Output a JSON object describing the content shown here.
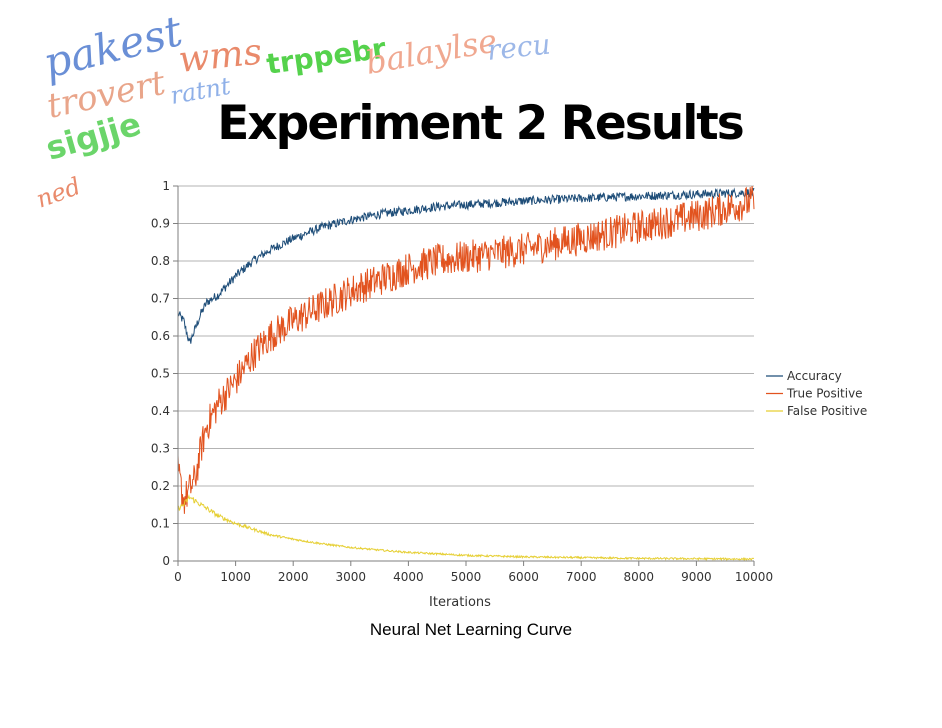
{
  "slide": {
    "title": "Experiment 2 Results",
    "caption": "Neural Net Learning Curve"
  },
  "captcha_words": [
    {
      "text": "pakest",
      "color": "#6a8fd6"
    },
    {
      "text": "wms",
      "color": "#e98a6b"
    },
    {
      "text": "trppebr",
      "color": "#55d24c"
    },
    {
      "text": "balaylse",
      "color": "#f0a890"
    },
    {
      "text": "recu",
      "color": "#9db8e8"
    },
    {
      "text": "trovert",
      "color": "#e9a58a"
    },
    {
      "text": "ratnt",
      "color": "#8fb0e8"
    },
    {
      "text": "sigjje",
      "color": "#6bd56a"
    },
    {
      "text": "ned",
      "color": "#e98a6b"
    }
  ],
  "chart_data": {
    "type": "line",
    "title": "",
    "xlabel": "Iterations",
    "ylabel": "",
    "xlim": [
      0,
      10000
    ],
    "ylim": [
      0,
      1
    ],
    "xticks": [
      "0",
      "1000",
      "2000",
      "3000",
      "4000",
      "5000",
      "6000",
      "7000",
      "8000",
      "9000",
      "10000"
    ],
    "yticks": [
      "0",
      "0.1",
      "0.2",
      "0.3",
      "0.4",
      "0.5",
      "0.6",
      "0.7",
      "0.8",
      "0.9",
      "1"
    ],
    "grid": "horizontal",
    "legend_position": "right",
    "series": [
      {
        "name": "Accuracy",
        "color": "#1f4e79",
        "points": [
          [
            0,
            0.66
          ],
          [
            100,
            0.64
          ],
          [
            200,
            0.58
          ],
          [
            300,
            0.62
          ],
          [
            400,
            0.66
          ],
          [
            500,
            0.69
          ],
          [
            700,
            0.71
          ],
          [
            1000,
            0.76
          ],
          [
            1300,
            0.8
          ],
          [
            1600,
            0.83
          ],
          [
            2000,
            0.86
          ],
          [
            2500,
            0.89
          ],
          [
            3000,
            0.91
          ],
          [
            3500,
            0.925
          ],
          [
            4000,
            0.935
          ],
          [
            4500,
            0.945
          ],
          [
            5000,
            0.95
          ],
          [
            5500,
            0.955
          ],
          [
            6000,
            0.96
          ],
          [
            7000,
            0.967
          ],
          [
            8000,
            0.973
          ],
          [
            9000,
            0.978
          ],
          [
            10000,
            0.983
          ]
        ]
      },
      {
        "name": "True Positive",
        "color": "#e2531f",
        "points": [
          [
            0,
            0.24
          ],
          [
            100,
            0.16
          ],
          [
            200,
            0.19
          ],
          [
            300,
            0.22
          ],
          [
            400,
            0.3
          ],
          [
            500,
            0.36
          ],
          [
            700,
            0.42
          ],
          [
            1000,
            0.48
          ],
          [
            1300,
            0.55
          ],
          [
            1600,
            0.6
          ],
          [
            2000,
            0.64
          ],
          [
            2500,
            0.68
          ],
          [
            3000,
            0.72
          ],
          [
            3500,
            0.75
          ],
          [
            4000,
            0.78
          ],
          [
            4500,
            0.8
          ],
          [
            5000,
            0.81
          ],
          [
            5500,
            0.82
          ],
          [
            6000,
            0.83
          ],
          [
            7000,
            0.86
          ],
          [
            8000,
            0.89
          ],
          [
            9000,
            0.92
          ],
          [
            10000,
            0.96
          ]
        ]
      },
      {
        "name": "False Positive",
        "color": "#e6cf33",
        "points": [
          [
            0,
            0.14
          ],
          [
            100,
            0.15
          ],
          [
            200,
            0.17
          ],
          [
            300,
            0.16
          ],
          [
            400,
            0.15
          ],
          [
            500,
            0.14
          ],
          [
            700,
            0.12
          ],
          [
            1000,
            0.1
          ],
          [
            1300,
            0.085
          ],
          [
            1600,
            0.07
          ],
          [
            2000,
            0.058
          ],
          [
            2500,
            0.046
          ],
          [
            3000,
            0.036
          ],
          [
            3500,
            0.029
          ],
          [
            4000,
            0.023
          ],
          [
            4500,
            0.019
          ],
          [
            5000,
            0.015
          ],
          [
            5500,
            0.013
          ],
          [
            6000,
            0.011
          ],
          [
            7000,
            0.009
          ],
          [
            8000,
            0.007
          ],
          [
            9000,
            0.006
          ],
          [
            10000,
            0.005
          ]
        ]
      }
    ]
  }
}
